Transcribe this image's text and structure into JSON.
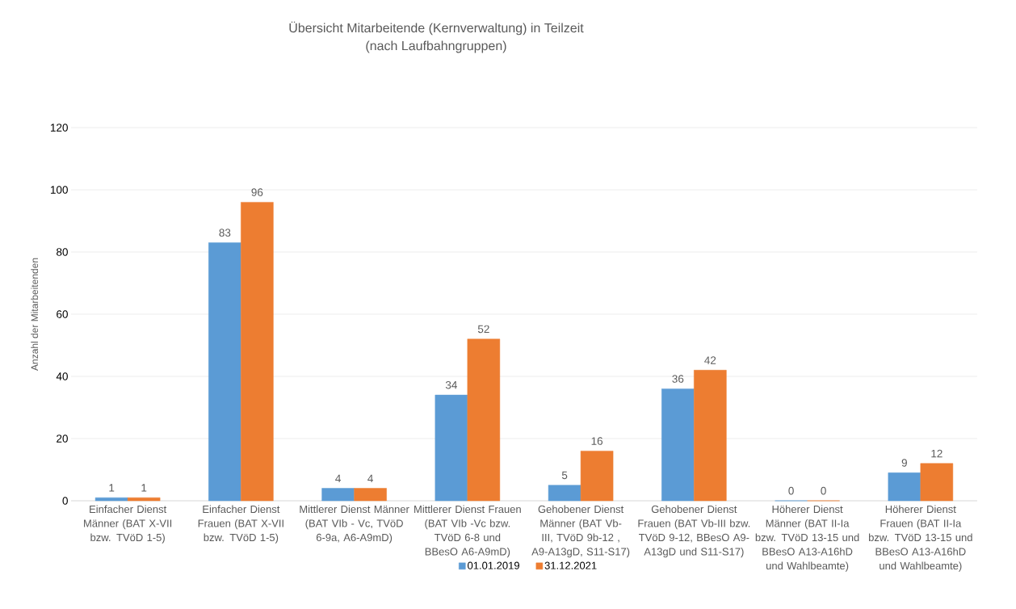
{
  "chart_data": {
    "type": "bar",
    "title": "Übersicht Mitarbeitende (Kernverwaltung) in Teilzeit",
    "subtitle": "(nach Laufbahngruppen)",
    "ylabel": "Anzahl der Mitarbeitenden",
    "categories": [
      "Einfacher Dienst Männer (BAT X-VII bzw. TVöD 1-5)",
      "Einfacher Dienst Frauen (BAT X-VII bzw. TVöD 1-5)",
      "Mittlerer Dienst Männer (BAT VIb - Vc, TVöD 6-9a, A6-A9mD)",
      "Mittlerer Dienst Frauen (BAT VIb -Vc bzw. TVöD 6-8 und BBesO A6-A9mD)",
      "Gehobener Dienst Männer (BAT Vb-III, TVöD 9b-12 , A9-A13gD, S11-S17)",
      "Gehobener Dienst Frauen (BAT Vb-III bzw. TVöD 9-12, BBesO A9-A13gD und S11-S17)",
      "Höherer Dienst Männer (BAT II-Ia bzw. TVöD 13-15 und BBesO A13-A16hD und Wahlbeamte)",
      "Höherer Dienst Frauen (BAT II-Ia bzw. TVöD 13-15 und BBesO A13-A16hD und Wahlbeamte)"
    ],
    "series": [
      {
        "name": "01.01.2019",
        "color": "#5b9bd5",
        "values": [
          1,
          83,
          4,
          34,
          5,
          36,
          0,
          9
        ]
      },
      {
        "name": "31.12.2021",
        "color": "#ed7d31",
        "values": [
          1,
          96,
          4,
          52,
          16,
          42,
          0,
          12
        ]
      }
    ],
    "ylim": [
      0,
      120
    ],
    "yticks": [
      0,
      20,
      40,
      60,
      80,
      100,
      120
    ],
    "grid": "y",
    "legend": "bottom",
    "data_labels": true
  }
}
